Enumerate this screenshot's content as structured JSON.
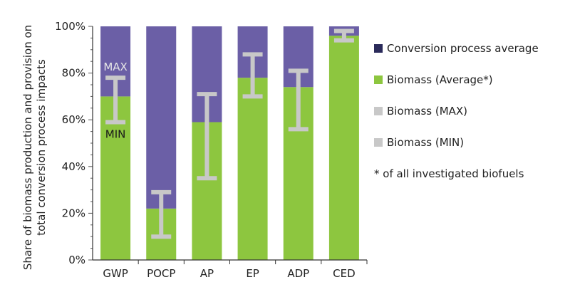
{
  "chart_data": {
    "type": "bar",
    "stacked": true,
    "ylabel": "Share of biomass production and provision on total conversion process impacts",
    "ylim": [
      0,
      100
    ],
    "yticks": [
      "0%",
      "20%",
      "40%",
      "60%",
      "80%",
      "100%"
    ],
    "categories": [
      "GWP",
      "POCP",
      "AP",
      "EP",
      "ADP",
      "CED"
    ],
    "series": [
      {
        "name": "Biomass (Average*)",
        "color": "#8dc63f",
        "values": [
          70,
          22,
          59,
          78,
          74,
          96
        ]
      },
      {
        "name": "Conversion process average",
        "color": "#6b5fa6",
        "values": [
          30,
          78,
          41,
          22,
          26,
          4
        ]
      }
    ],
    "range": {
      "max": [
        78,
        29,
        71,
        88,
        81,
        98
      ],
      "min": [
        59,
        10,
        35,
        70,
        56,
        94
      ],
      "color": "#c8c8c8"
    },
    "annotations": [
      {
        "text": "MAX",
        "category": "GWP",
        "color": "#e6e6e6"
      },
      {
        "text": "MIN",
        "category": "GWP",
        "color": "#1a1a1a"
      }
    ],
    "legend": {
      "position": "right",
      "entries": [
        {
          "label": "Conversion process average",
          "color": "#2a2a5a"
        },
        {
          "label": "Biomass (Average*)",
          "color": "#8dc63f"
        },
        {
          "label": "Biomass (MAX)",
          "color": "#c8c8c8"
        },
        {
          "label": "Biomass (MIN)",
          "color": "#c8c8c8"
        }
      ],
      "footnote": "* of all investigated biofuels"
    }
  }
}
